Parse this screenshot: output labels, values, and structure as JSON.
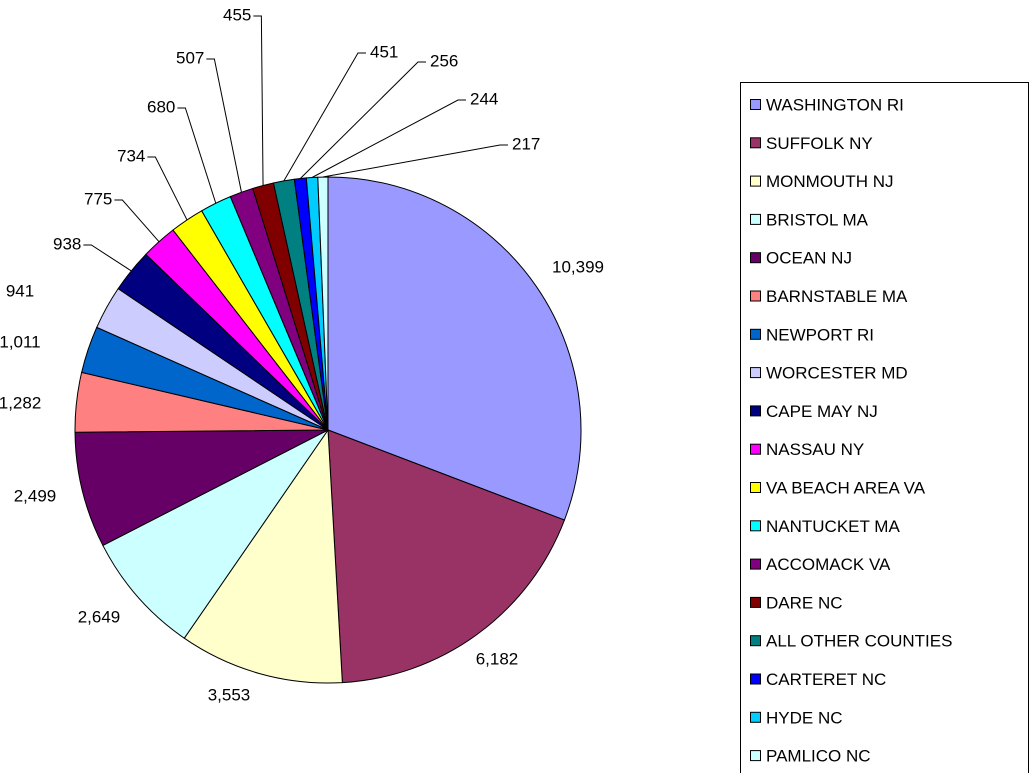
{
  "chart_data": {
    "type": "pie",
    "categories": [
      "WASHINGTON RI",
      "SUFFOLK NY",
      "MONMOUTH NJ",
      "BRISTOL MA",
      "OCEAN NJ",
      "BARNSTABLE MA",
      "NEWPORT RI",
      "WORCESTER MD",
      "CAPE MAY NJ",
      "NASSAU NY",
      "VA BEACH AREA VA",
      "NANTUCKET MA",
      "ACCOMACK VA",
      "DARE NC",
      "ALL OTHER COUNTIES",
      "CARTERET NC",
      "HYDE NC",
      "PAMLICO NC"
    ],
    "values": [
      10399,
      6182,
      3553,
      2649,
      2499,
      1282,
      1011,
      941,
      938,
      775,
      734,
      680,
      507,
      455,
      451,
      256,
      244,
      217
    ],
    "value_labels": [
      "10,399",
      "6,182",
      "3,553",
      "2,649",
      "2,499",
      "1,282",
      "1,011",
      "941",
      "938",
      "775",
      "734",
      "680",
      "507",
      "455",
      "451",
      "256",
      "244",
      "217"
    ],
    "colors": [
      "#9999ff",
      "#993366",
      "#ffffcc",
      "#ccffff",
      "#660066",
      "#ff8080",
      "#0066cc",
      "#ccccff",
      "#000080",
      "#ff00ff",
      "#ffff00",
      "#00ffff",
      "#800080",
      "#800000",
      "#008080",
      "#0000ff",
      "#00ccff",
      "#ccffff"
    ],
    "legend": "right"
  }
}
